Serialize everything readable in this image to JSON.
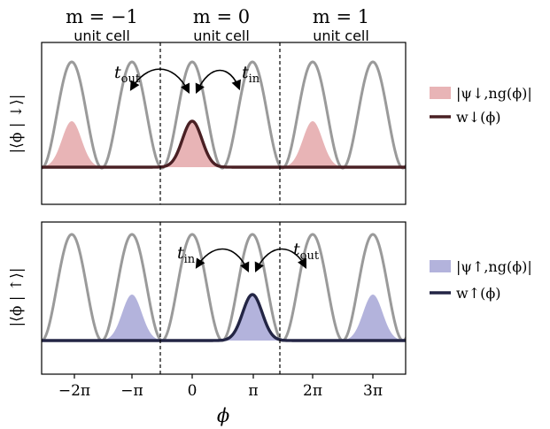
{
  "colors": {
    "potential": "#9a9a9a",
    "down_fill": "#e8b4b6",
    "down_line": "#4a2024",
    "up_fill": "#b3b3dc",
    "up_line": "#232545",
    "axis": "#000000"
  },
  "cells": [
    {
      "m": "m = −1",
      "label": "unit cell"
    },
    {
      "m": "m = 0",
      "label": "unit cell"
    },
    {
      "m": "m = 1",
      "label": "unit cell"
    }
  ],
  "x_ticks": [
    "−2π",
    "−π",
    "0",
    "π",
    "2π",
    "3π"
  ],
  "x_label": "ϕ",
  "top_panel": {
    "ylabel": "|⟨ϕ | ↓⟩|",
    "t_out": "t",
    "t_out_sub": "out",
    "t_in": "t",
    "t_in_sub": "in",
    "legend_fill": "|ψ↓,ng(ϕ)|",
    "legend_line": "w↓(ϕ)"
  },
  "bottom_panel": {
    "ylabel": "|⟨ϕ | ↑⟩|",
    "t_in": "t",
    "t_in_sub": "in",
    "t_out": "t",
    "t_out_sub": "out",
    "legend_fill": "|ψ↑,ng(ϕ)|",
    "legend_line": "w↑(ϕ)"
  },
  "chart_data": {
    "type": "line",
    "x_range": [
      "−2.5π",
      "3.5π"
    ],
    "cell_boundaries": [
      "−π/2",
      "3π/2"
    ],
    "potential": "cosine, period π",
    "top": {
      "peaks_fill_at": [
        "−2π",
        "0",
        "2π"
      ],
      "localized_peak_at": "0"
    },
    "bottom": {
      "peaks_fill_at": [
        "−π",
        "π",
        "3π"
      ],
      "localized_peak_at": "π"
    }
  }
}
